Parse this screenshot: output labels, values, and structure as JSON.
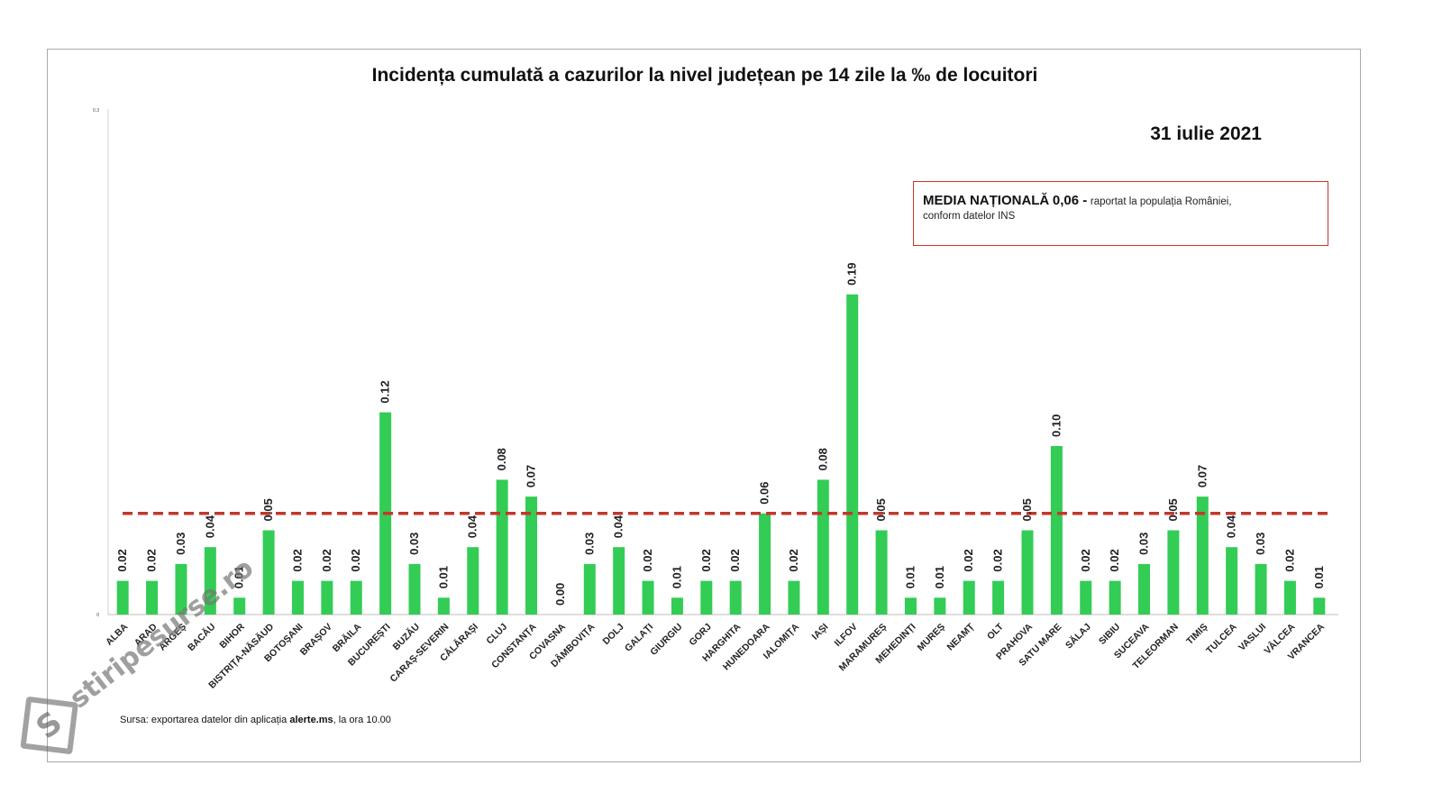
{
  "chart_data": {
    "type": "bar",
    "title": "Incidența cumulată a cazurilor la nivel județean pe 14 zile   la ‰ de locuitori",
    "date": "31 iulie 2021",
    "categories": [
      "ALBA",
      "ARAD",
      "ARGEȘ",
      "BACĂU",
      "BIHOR",
      "BISTRIȚA-NĂSĂUD",
      "BOTOȘANI",
      "BRAȘOV",
      "BRĂILA",
      "BUCUREȘTI",
      "BUZĂU",
      "CARAȘ-SEVERIN",
      "CĂLĂRAȘI",
      "CLUJ",
      "CONSTANȚA",
      "COVASNA",
      "DÂMBOVIȚA",
      "DOLJ",
      "GALAȚI",
      "GIURGIU",
      "GORJ",
      "HARGHITA",
      "HUNEDOARA",
      "IALOMIȚA",
      "IAȘI",
      "ILFOV",
      "MARAMUREȘ",
      "MEHEDINȚI",
      "MUREȘ",
      "NEAMȚ",
      "OLT",
      "PRAHOVA",
      "SATU MARE",
      "SĂLAJ",
      "SIBIU",
      "SUCEAVA",
      "TELEORMAN",
      "TIMIȘ",
      "TULCEA",
      "VASLUI",
      "VÂLCEA",
      "VRANCEA"
    ],
    "values": [
      0.02,
      0.02,
      0.03,
      0.04,
      0.01,
      0.05,
      0.02,
      0.02,
      0.02,
      0.12,
      0.03,
      0.01,
      0.04,
      0.08,
      0.07,
      0.0,
      0.03,
      0.04,
      0.02,
      0.01,
      0.02,
      0.02,
      0.06,
      0.02,
      0.08,
      0.19,
      0.05,
      0.01,
      0.01,
      0.02,
      0.02,
      0.05,
      0.1,
      0.02,
      0.02,
      0.03,
      0.05,
      0.07,
      0.04,
      0.03,
      0.02,
      0.01
    ],
    "value_labels": [
      "0.02",
      "0.02",
      "0.03",
      "0.04",
      "0.01",
      "0.05",
      "0.02",
      "0.02",
      "0.02",
      "0.12",
      "0.03",
      "0.01",
      "0.04",
      "0.08",
      "0.07",
      "0.00",
      "0.03",
      "0.04",
      "0.02",
      "0.01",
      "0.02",
      "0.02",
      "0.06",
      "0.02",
      "0.08",
      "0.19",
      "0.05",
      "0.01",
      "0.01",
      "0.02",
      "0.02",
      "0.05",
      "0.10",
      "0.02",
      "0.02",
      "0.03",
      "0.05",
      "0.07",
      "0.04",
      "0.03",
      "0.02",
      "0.01"
    ],
    "national_average": 0.06,
    "y_ticks": [
      "0.3",
      "0"
    ],
    "ylim": [
      0,
      0.3
    ],
    "xlabel": "",
    "ylabel": "",
    "legend": "none"
  },
  "colors": {
    "bar": "#33cc55",
    "average_line": "#c0392b",
    "box_border": "#c0392b"
  },
  "media_box": {
    "label": "MEDIA NAȚIONALĂ",
    "value": "0,06 -",
    "text_line1": "raportat la populația României,",
    "text_line2": "conform datelor INS"
  },
  "source_note": {
    "prefix": "Sursa: exportarea datelor din aplicația",
    "app": "alerte.ms",
    "suffix": ", la ora 10.00"
  },
  "watermark": {
    "logo_letter": "S",
    "text": "stiripesurse.ro"
  }
}
